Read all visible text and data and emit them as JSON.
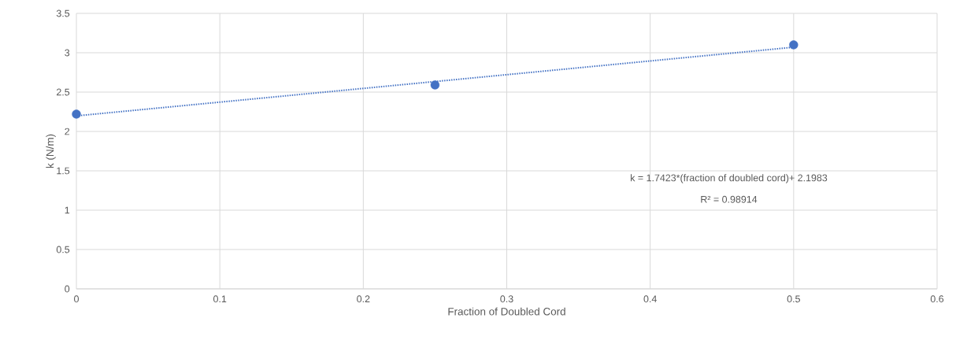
{
  "chart_data": {
    "type": "scatter",
    "xlabel": "Fraction of Doubled Cord",
    "ylabel": "k (N/m)",
    "xlim": [
      0,
      0.6
    ],
    "ylim": [
      0,
      3.5
    ],
    "xticks": [
      0,
      0.1,
      0.2,
      0.3,
      0.4,
      0.5,
      0.6
    ],
    "yticks": [
      0,
      0.5,
      1,
      1.5,
      2,
      2.5,
      3,
      3.5
    ],
    "grid": true,
    "annotations": [
      "k = 1.7423*(fraction of doubled cord)+ 2.1983",
      "R² = 0.98914"
    ],
    "series": [
      {
        "type": "scatter",
        "color": "#4472c4",
        "marker": "circle",
        "x": [
          0,
          0.25,
          0.5
        ],
        "values": [
          2.22,
          2.59,
          3.1
        ]
      },
      {
        "type": "line",
        "color": "#4472c4",
        "marker": "none",
        "line_style": "dotted",
        "x": [
          0,
          0.5
        ],
        "values": [
          2.198,
          3.07
        ]
      }
    ]
  }
}
